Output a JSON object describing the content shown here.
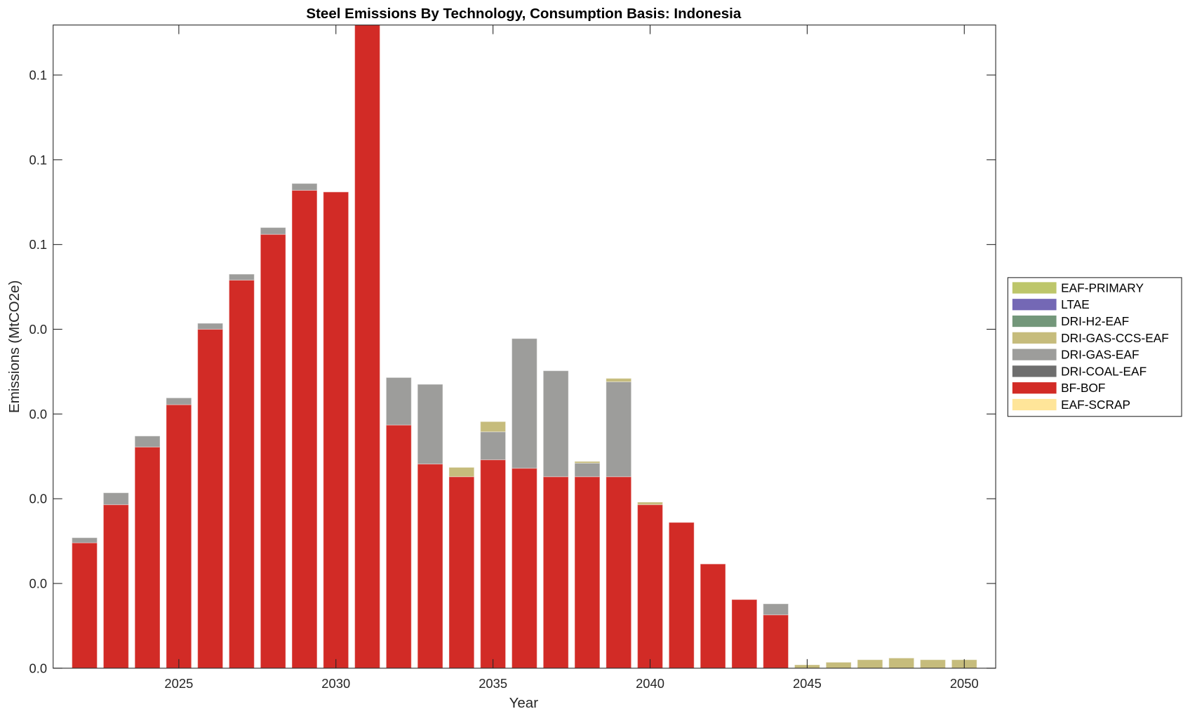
{
  "chart_data": {
    "type": "bar",
    "stacked": true,
    "title": "Steel Emissions By Technology, Consumption Basis: Indonesia",
    "xlabel": "Year",
    "ylabel": "Emissions (MtCO2e)",
    "xlim": [
      2021,
      2051
    ],
    "ylim": [
      0,
      0.0759
    ],
    "xticks": [
      2025,
      2030,
      2035,
      2040,
      2045,
      2050
    ],
    "xtick_labels": [
      "2025",
      "2030",
      "2035",
      "2040",
      "2045",
      "2050"
    ],
    "yticks": [
      0,
      0.01,
      0.02,
      0.03,
      0.04,
      0.05,
      0.06,
      0.07
    ],
    "ytick_labels": [
      "0.0",
      "0.0",
      "0.0",
      "0.0",
      "0.0",
      "0.1",
      "0.1",
      "0.1"
    ],
    "legend_placement": "outside-right",
    "x": [
      2022,
      2023,
      2024,
      2025,
      2026,
      2027,
      2028,
      2029,
      2030,
      2031,
      2032,
      2033,
      2034,
      2035,
      2036,
      2037,
      2038,
      2039,
      2040,
      2041,
      2042,
      2043,
      2044,
      2045,
      2046,
      2047,
      2048,
      2049,
      2050
    ],
    "series": [
      {
        "name": "EAF-SCRAP",
        "color": "#FFE599",
        "values": [
          0,
          0,
          0,
          0,
          0,
          0,
          0,
          0,
          0,
          0,
          0,
          0,
          0,
          0,
          0,
          0,
          0,
          0,
          0,
          0,
          0,
          0,
          0,
          0,
          0,
          0,
          0,
          0,
          0
        ]
      },
      {
        "name": "BF-BOF",
        "color": "#D22B26",
        "values": [
          0.0148,
          0.0193,
          0.0261,
          0.0311,
          0.04,
          0.0458,
          0.0512,
          0.0564,
          0.0562,
          0.08,
          0.0287,
          0.0241,
          0.0226,
          0.0246,
          0.0236,
          0.0226,
          0.0226,
          0.0226,
          0.0193,
          0.0172,
          0.0123,
          0.0081,
          0.0063,
          0,
          0,
          0,
          0,
          0,
          0
        ]
      },
      {
        "name": "DRI-COAL-EAF",
        "color": "#6E6E6E",
        "values": [
          0,
          0,
          0,
          0,
          0,
          0,
          0,
          0,
          0,
          0,
          0,
          0,
          0,
          0,
          0,
          0,
          0,
          0,
          0,
          0,
          0,
          0,
          0,
          0,
          0,
          0,
          0,
          0,
          0
        ]
      },
      {
        "name": "DRI-GAS-EAF",
        "color": "#9D9D9B",
        "values": [
          0.0006,
          0.0014,
          0.0013,
          0.0008,
          0.0007,
          0.0007,
          0.0008,
          0.0008,
          0,
          0,
          0.0056,
          0.0094,
          0,
          0.0033,
          0.0153,
          0.0125,
          0.0016,
          0.0112,
          0,
          0,
          0,
          0,
          0.0013,
          0,
          0,
          0,
          0,
          0,
          0
        ]
      },
      {
        "name": "DRI-GAS-CCS-EAF",
        "color": "#C6BC7C",
        "values": [
          0,
          0,
          0,
          0,
          0,
          0,
          0,
          0,
          0,
          0,
          0,
          0,
          0.0011,
          0.0012,
          0,
          0,
          0.0002,
          0.0004,
          0.0003,
          0,
          0,
          0,
          0,
          0.0004,
          0.0007,
          0.001,
          0.0012,
          0.001,
          0.001
        ]
      },
      {
        "name": "DRI-H2-EAF",
        "color": "#73977A",
        "values": [
          0,
          0,
          0,
          0,
          0,
          0,
          0,
          0,
          0,
          0,
          0,
          0,
          0,
          0,
          0,
          0,
          0,
          0,
          0,
          0,
          0,
          0,
          0,
          0,
          0,
          0,
          0,
          0,
          0
        ]
      },
      {
        "name": "LTAE",
        "color": "#7468B5",
        "values": [
          0,
          0,
          0,
          0,
          0,
          0,
          0,
          0,
          0,
          0,
          0,
          0,
          0,
          0,
          0,
          0,
          0,
          0,
          0,
          0,
          0,
          0,
          0,
          0,
          0,
          0,
          0,
          0,
          0
        ]
      },
      {
        "name": "EAF-PRIMARY",
        "color": "#BDC66A",
        "values": [
          0,
          0,
          0,
          0,
          0,
          0,
          0,
          0,
          0,
          0,
          0,
          0,
          0,
          0,
          0,
          0,
          0,
          0,
          0,
          0,
          0,
          0,
          0,
          0,
          0,
          0,
          0,
          0,
          0
        ]
      }
    ]
  }
}
